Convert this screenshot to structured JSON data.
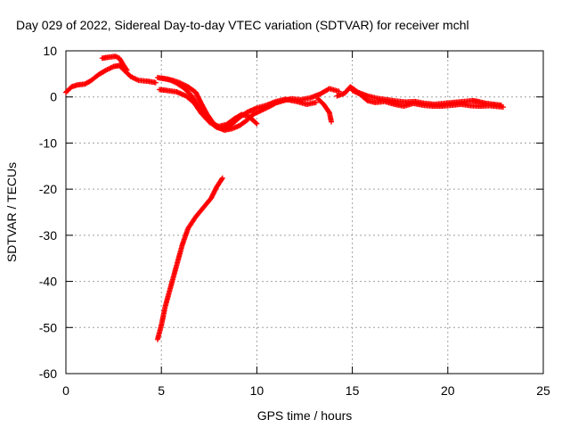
{
  "chart_data": {
    "type": "scatter",
    "title": "Day 029 of 2022, Sidereal Day-to-day VTEC variation (SDTVAR) for receiver mchl",
    "xlabel": "GPS time / hours",
    "ylabel": "SDTVAR / TECUs",
    "xlim": [
      0,
      25
    ],
    "ylim": [
      -60,
      10
    ],
    "xticks": [
      0,
      5,
      10,
      15,
      20,
      25
    ],
    "yticks": [
      -60,
      -50,
      -40,
      -30,
      -20,
      -10,
      0,
      10
    ],
    "xtick_labels": [
      "0",
      "5",
      "10",
      "15",
      "20",
      "25"
    ],
    "ytick_labels": [
      "-60",
      "-50",
      "-40",
      "-30",
      "-20",
      "-10",
      "0",
      "10"
    ],
    "grid": true,
    "marker": "plus",
    "series": [
      {
        "name": "SDTVAR",
        "color": "#ff0000",
        "tracks": [
          [
            [
              0.0,
              1.0
            ],
            [
              0.3,
              2.2
            ],
            [
              0.6,
              2.6
            ],
            [
              1.0,
              2.8
            ],
            [
              1.3,
              3.5
            ],
            [
              1.7,
              4.8
            ],
            [
              2.1,
              5.8
            ],
            [
              2.5,
              6.6
            ],
            [
              2.8,
              6.8
            ],
            [
              3.1,
              5.6
            ],
            [
              3.4,
              4.4
            ],
            [
              3.8,
              3.6
            ],
            [
              4.3,
              3.4
            ],
            [
              4.7,
              3.1
            ]
          ],
          [
            [
              1.9,
              8.4
            ],
            [
              2.2,
              8.6
            ],
            [
              2.6,
              8.8
            ],
            [
              2.8,
              8.4
            ],
            [
              3.0,
              7.0
            ],
            [
              3.2,
              5.8
            ]
          ],
          [
            [
              4.8,
              4.2
            ],
            [
              5.2,
              3.9
            ],
            [
              5.6,
              3.6
            ],
            [
              6.0,
              3.0
            ],
            [
              6.4,
              2.2
            ],
            [
              6.8,
              1.0
            ],
            [
              7.1,
              -1.5
            ],
            [
              7.4,
              -3.8
            ],
            [
              7.7,
              -5.6
            ],
            [
              8.0,
              -6.7
            ],
            [
              8.3,
              -7.2
            ],
            [
              8.7,
              -6.9
            ],
            [
              9.1,
              -6.2
            ],
            [
              9.5,
              -5.0
            ],
            [
              9.8,
              -3.8
            ],
            [
              10.2,
              -3.0
            ],
            [
              10.6,
              -2.2
            ],
            [
              11.0,
              -1.3
            ],
            [
              11.4,
              -0.8
            ],
            [
              11.8,
              -0.4
            ],
            [
              12.3,
              -0.6
            ],
            [
              12.8,
              -0.2
            ],
            [
              13.3,
              0.6
            ],
            [
              13.8,
              1.8
            ],
            [
              14.3,
              1.2
            ]
          ],
          [
            [
              4.9,
              1.6
            ],
            [
              5.3,
              1.4
            ],
            [
              5.8,
              1.1
            ],
            [
              6.3,
              0.2
            ],
            [
              6.7,
              -1.2
            ],
            [
              7.1,
              -3.6
            ],
            [
              7.5,
              -5.4
            ],
            [
              7.9,
              -6.6
            ],
            [
              8.3,
              -6.9
            ],
            [
              8.7,
              -5.9
            ],
            [
              9.1,
              -4.4
            ],
            [
              9.5,
              -3.3
            ],
            [
              10.0,
              -2.4
            ],
            [
              10.5,
              -1.8
            ],
            [
              11.0,
              -1.0
            ],
            [
              11.5,
              -0.5
            ],
            [
              12.1,
              -1.0
            ],
            [
              12.6,
              -1.6
            ],
            [
              13.1,
              -1.2
            ]
          ],
          [
            [
              5.0,
              4.1
            ],
            [
              5.4,
              3.8
            ],
            [
              5.8,
              3.0
            ],
            [
              6.2,
              1.9
            ],
            [
              6.6,
              0.2
            ],
            [
              7.0,
              -2.4
            ],
            [
              7.3,
              -4.4
            ],
            [
              7.6,
              -5.6
            ],
            [
              8.0,
              -6.4
            ],
            [
              8.4,
              -6.0
            ],
            [
              8.8,
              -4.8
            ],
            [
              9.2,
              -3.8
            ],
            [
              9.6,
              -4.3
            ],
            [
              10.0,
              -5.8
            ]
          ],
          [
            [
              13.2,
              -0.4
            ],
            [
              13.5,
              -1.6
            ],
            [
              13.8,
              -3.4
            ],
            [
              13.9,
              -5.4
            ]
          ],
          [
            [
              14.2,
              0.2
            ],
            [
              14.6,
              0.8
            ],
            [
              14.9,
              2.2
            ],
            [
              15.3,
              1.0
            ],
            [
              15.8,
              0.2
            ],
            [
              16.3,
              -0.3
            ],
            [
              16.8,
              -0.6
            ],
            [
              17.3,
              -0.9
            ],
            [
              17.8,
              -1.1
            ],
            [
              18.3,
              -1.0
            ],
            [
              18.8,
              -1.4
            ],
            [
              19.3,
              -1.6
            ],
            [
              19.8,
              -1.4
            ],
            [
              20.3,
              -1.2
            ],
            [
              20.8,
              -1.0
            ],
            [
              21.3,
              -0.8
            ],
            [
              21.6,
              -1.0
            ],
            [
              22.0,
              -1.4
            ],
            [
              22.4,
              -1.6
            ],
            [
              22.8,
              -1.8
            ]
          ],
          [
            [
              15.0,
              1.4
            ],
            [
              15.4,
              0.6
            ],
            [
              15.8,
              -0.8
            ],
            [
              16.2,
              -1.2
            ],
            [
              16.7,
              -1.0
            ],
            [
              17.2,
              -1.6
            ],
            [
              17.7,
              -2.0
            ],
            [
              18.2,
              -1.4
            ],
            [
              18.7,
              -1.8
            ],
            [
              19.2,
              -2.0
            ],
            [
              19.7,
              -2.0
            ],
            [
              20.2,
              -1.8
            ],
            [
              20.7,
              -1.6
            ],
            [
              21.2,
              -1.9
            ],
            [
              21.7,
              -2.0
            ],
            [
              22.2,
              -1.9
            ],
            [
              22.9,
              -2.2
            ]
          ],
          [
            [
              4.8,
              -52.6
            ],
            [
              5.0,
              -49.5
            ],
            [
              5.2,
              -45.5
            ],
            [
              5.5,
              -41.0
            ],
            [
              5.8,
              -36.5
            ],
            [
              6.1,
              -32.0
            ],
            [
              6.4,
              -28.5
            ],
            [
              6.8,
              -26.0
            ],
            [
              7.2,
              -24.0
            ],
            [
              7.6,
              -22.0
            ],
            [
              7.9,
              -19.5
            ],
            [
              8.2,
              -17.6
            ]
          ]
        ]
      }
    ]
  }
}
